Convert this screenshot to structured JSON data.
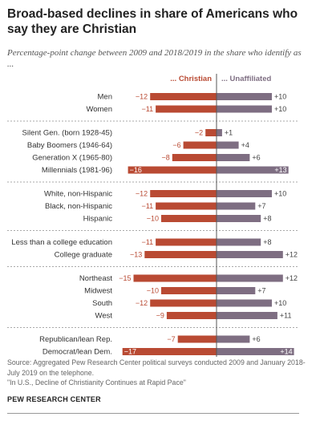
{
  "chart_data": {
    "type": "bar",
    "title": "Broad-based declines in share of Americans who say they are Christian",
    "subtitle": "Percentage-point change between 2009 and 2018/2019 in the share who identify as ...",
    "series": [
      {
        "name": "... Christian",
        "color": "#b94a33"
      },
      {
        "name": "... Unaffiliated",
        "color": "#7e6e82"
      }
    ],
    "groups": [
      {
        "rows": [
          {
            "label": "Men",
            "christian": -12,
            "unaffiliated": 10,
            "christian_label": "−12",
            "unaffiliated_label": "+10"
          },
          {
            "label": "Women",
            "christian": -11,
            "unaffiliated": 10,
            "christian_label": "−11",
            "unaffiliated_label": "+10"
          }
        ]
      },
      {
        "rows": [
          {
            "label": "Silent Gen. (born 1928-45)",
            "christian": -2,
            "unaffiliated": 1,
            "christian_label": "−2",
            "unaffiliated_label": "+1"
          },
          {
            "label": "Baby Boomers (1946-64)",
            "christian": -6,
            "unaffiliated": 4,
            "christian_label": "−6",
            "unaffiliated_label": "+4"
          },
          {
            "label": "Generation X (1965-80)",
            "christian": -8,
            "unaffiliated": 6,
            "christian_label": "−8",
            "unaffiliated_label": "+6"
          },
          {
            "label": "Millennials (1981-96)",
            "christian": -16,
            "unaffiliated": 13,
            "christian_label": "−16",
            "unaffiliated_label": "+13",
            "inside": true
          }
        ]
      },
      {
        "rows": [
          {
            "label": "White, non-Hispanic",
            "christian": -12,
            "unaffiliated": 10,
            "christian_label": "−12",
            "unaffiliated_label": "+10"
          },
          {
            "label": "Black, non-Hispanic",
            "christian": -11,
            "unaffiliated": 7,
            "christian_label": "−11",
            "unaffiliated_label": "+7"
          },
          {
            "label": "Hispanic",
            "christian": -10,
            "unaffiliated": 8,
            "christian_label": "−10",
            "unaffiliated_label": "+8"
          }
        ]
      },
      {
        "rows": [
          {
            "label": "Less than a college education",
            "christian": -11,
            "unaffiliated": 8,
            "christian_label": "−11",
            "unaffiliated_label": "+8"
          },
          {
            "label": "College graduate",
            "christian": -13,
            "unaffiliated": 12,
            "christian_label": "−13",
            "unaffiliated_label": "+12"
          }
        ]
      },
      {
        "rows": [
          {
            "label": "Northeast",
            "christian": -15,
            "unaffiliated": 12,
            "christian_label": "−15",
            "unaffiliated_label": "+12"
          },
          {
            "label": "Midwest",
            "christian": -10,
            "unaffiliated": 7,
            "christian_label": "−10",
            "unaffiliated_label": "+7"
          },
          {
            "label": "South",
            "christian": -12,
            "unaffiliated": 10,
            "christian_label": "−12",
            "unaffiliated_label": "+10"
          },
          {
            "label": "West",
            "christian": -9,
            "unaffiliated": 11,
            "christian_label": "−9",
            "unaffiliated_label": "+11"
          }
        ]
      },
      {
        "rows": [
          {
            "label": "Republican/lean Rep.",
            "christian": -7,
            "unaffiliated": 6,
            "christian_label": "−7",
            "unaffiliated_label": "+6"
          },
          {
            "label": "Democrat/lean Dem.",
            "christian": -17,
            "unaffiliated": 14,
            "christian_label": "−17",
            "unaffiliated_label": "+14",
            "inside": true
          }
        ]
      }
    ]
  },
  "footer": {
    "source": "Source: Aggregated Pew Research Center political surveys conducted 2009 and January 2018-July 2019 on the telephone.",
    "report": "\"In U.S., Decline of Christianity Continues at Rapid Pace\"",
    "org": "PEW RESEARCH CENTER"
  }
}
